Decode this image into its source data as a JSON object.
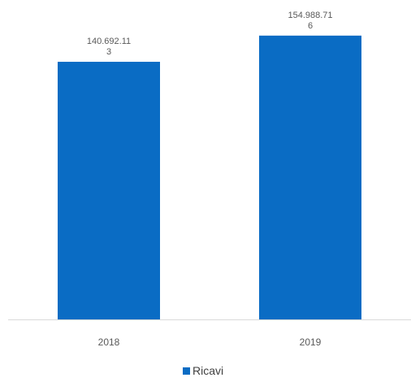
{
  "chart_data": {
    "type": "bar",
    "categories": [
      "2018",
      "2019"
    ],
    "series": [
      {
        "name": "Ricavi",
        "values": [
          140692113,
          154988716
        ],
        "data_labels": [
          [
            "140.692.11",
            "3"
          ],
          [
            "154.988.71",
            "6"
          ]
        ]
      }
    ],
    "title": "",
    "xlabel": "",
    "ylabel": "",
    "ylim": [
      0,
      170000000
    ],
    "grid": false,
    "legend": "bottom",
    "colors": {
      "bar": "#0A6CC4",
      "axis": "#D9D9D9"
    }
  }
}
